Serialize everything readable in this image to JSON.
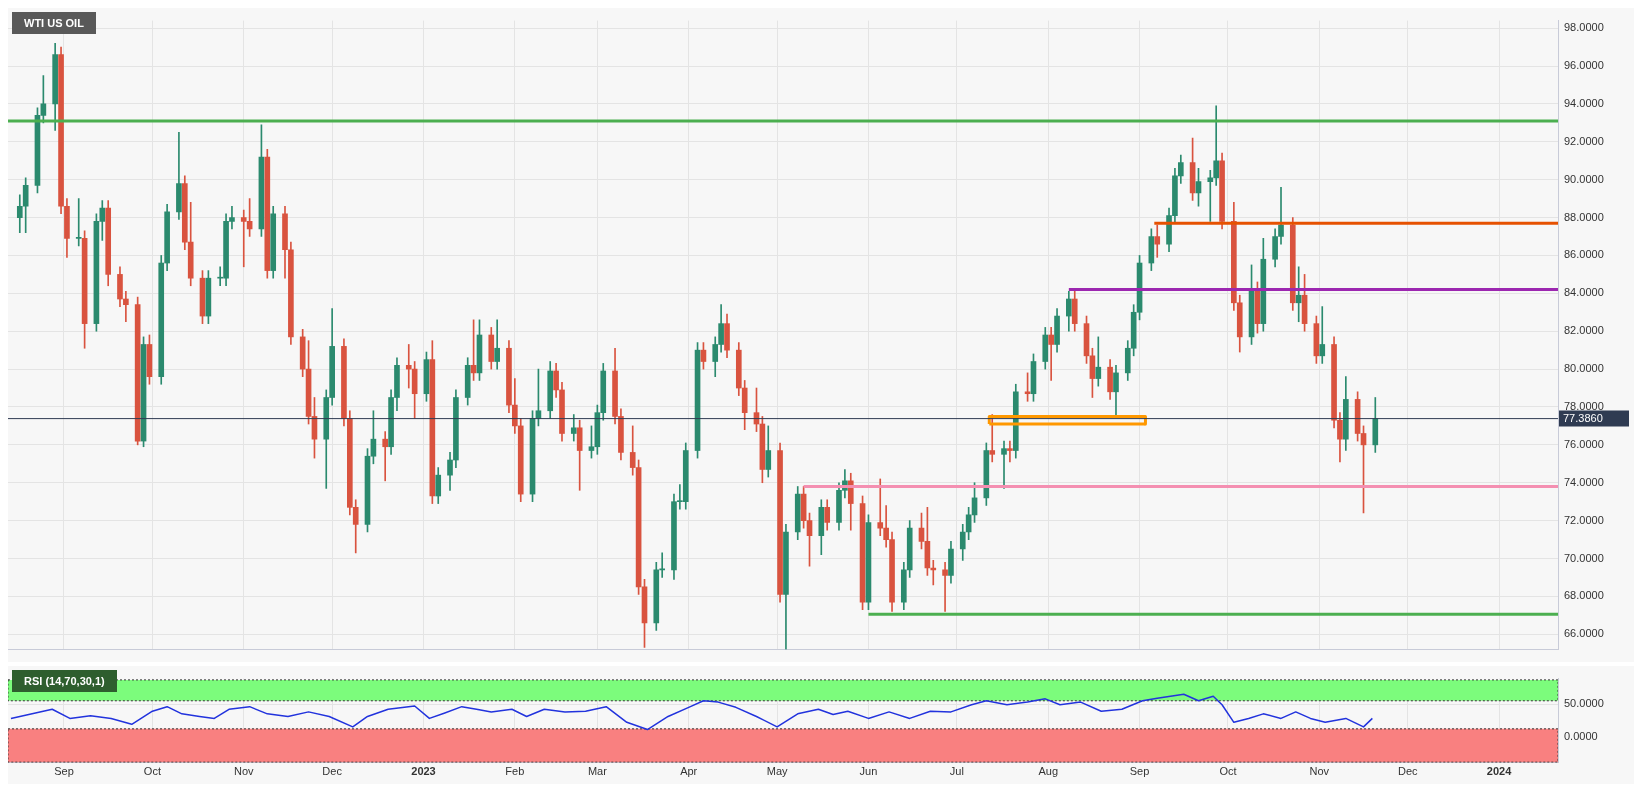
{
  "chart_data": [
    {
      "type": "candlestick",
      "title": "WTI US OIL",
      "x": [
        "2022-08-17",
        "2022-08-19",
        "2022-08-23",
        "2022-08-25",
        "2022-08-29",
        "2022-08-31",
        "2022-09-02",
        "2022-09-06",
        "2022-09-08",
        "2022-09-12",
        "2022-09-14",
        "2022-09-16",
        "2022-09-20",
        "2022-09-22",
        "2022-09-26",
        "2022-09-28",
        "2022-09-30",
        "2022-10-04",
        "2022-10-06",
        "2022-10-10",
        "2022-10-12",
        "2022-10-14",
        "2022-10-18",
        "2022-10-20",
        "2022-10-24",
        "2022-10-26",
        "2022-10-28",
        "2022-11-01",
        "2022-11-03",
        "2022-11-07",
        "2022-11-09",
        "2022-11-11",
        "2022-11-15",
        "2022-11-17",
        "2022-11-21",
        "2022-11-23",
        "2022-11-25",
        "2022-11-29",
        "2022-12-01",
        "2022-12-05",
        "2022-12-07",
        "2022-12-09",
        "2022-12-13",
        "2022-12-15",
        "2022-12-19",
        "2022-12-21",
        "2022-12-23",
        "2022-12-27",
        "2022-12-29",
        "2023-01-02",
        "2023-01-04",
        "2023-01-06",
        "2023-01-10",
        "2023-01-12",
        "2023-01-16",
        "2023-01-18",
        "2023-01-20",
        "2023-01-24",
        "2023-01-26",
        "2023-01-30",
        "2023-02-01",
        "2023-02-03",
        "2023-02-07",
        "2023-02-09",
        "2023-02-13",
        "2023-02-15",
        "2023-02-17",
        "2023-02-21",
        "2023-02-23",
        "2023-02-27",
        "2023-03-01",
        "2023-03-03",
        "2023-03-07",
        "2023-03-09",
        "2023-03-13",
        "2023-03-15",
        "2023-03-17",
        "2023-03-21",
        "2023-03-23",
        "2023-03-27",
        "2023-03-29",
        "2023-03-31",
        "2023-04-04",
        "2023-04-06",
        "2023-04-10",
        "2023-04-12",
        "2023-04-14",
        "2023-04-18",
        "2023-04-20",
        "2023-04-24",
        "2023-04-26",
        "2023-04-28",
        "2023-05-02",
        "2023-05-04",
        "2023-05-08",
        "2023-05-10",
        "2023-05-12",
        "2023-05-16",
        "2023-05-18",
        "2023-05-22",
        "2023-05-24",
        "2023-05-26",
        "2023-05-30",
        "2023-06-01",
        "2023-06-05",
        "2023-06-07",
        "2023-06-09",
        "2023-06-13",
        "2023-06-15",
        "2023-06-19",
        "2023-06-21",
        "2023-06-23",
        "2023-06-27",
        "2023-06-29",
        "2023-07-03",
        "2023-07-05",
        "2023-07-07",
        "2023-07-11",
        "2023-07-13",
        "2023-07-17",
        "2023-07-19",
        "2023-07-21",
        "2023-07-25",
        "2023-07-27",
        "2023-07-31",
        "2023-08-02",
        "2023-08-04",
        "2023-08-08",
        "2023-08-10",
        "2023-08-14",
        "2023-08-16",
        "2023-08-18",
        "2023-08-22",
        "2023-08-24",
        "2023-08-28",
        "2023-08-30",
        "2023-09-01",
        "2023-09-05",
        "2023-09-07",
        "2023-09-11",
        "2023-09-13",
        "2023-09-15",
        "2023-09-19",
        "2023-09-21",
        "2023-09-25",
        "2023-09-27",
        "2023-09-29",
        "2023-10-03",
        "2023-10-05",
        "2023-10-09",
        "2023-10-11",
        "2023-10-13",
        "2023-10-17",
        "2023-10-19",
        "2023-10-23",
        "2023-10-25",
        "2023-10-27",
        "2023-10-31",
        "2023-11-02",
        "2023-11-06",
        "2023-11-08",
        "2023-11-10",
        "2023-11-14",
        "2023-11-16",
        "2023-11-20"
      ],
      "ohlc": [
        [
          88,
          89.2,
          87.2,
          88.6
        ],
        [
          88.6,
          90.1,
          87.2,
          89.7
        ],
        [
          89.7,
          93.8,
          89.3,
          93.4
        ],
        [
          93.4,
          95.5,
          93,
          94
        ],
        [
          94,
          97.2,
          92.6,
          96.6
        ],
        [
          96.6,
          97,
          88.2,
          88.6
        ],
        [
          88.6,
          89,
          85.9,
          86.9
        ],
        [
          86.9,
          89,
          86.5,
          86.9
        ],
        [
          86.9,
          87.3,
          81.1,
          82.4
        ],
        [
          82.4,
          88.2,
          82,
          87.8
        ],
        [
          87.8,
          88.9,
          86.8,
          88.5
        ],
        [
          88.5,
          88.9,
          84.4,
          85
        ],
        [
          85,
          85.4,
          83.3,
          83.7
        ],
        [
          83.7,
          84.1,
          82.5,
          83.4
        ],
        [
          83.4,
          83.8,
          76,
          76.2
        ],
        [
          76.2,
          81.7,
          75.9,
          81.3
        ],
        [
          81.3,
          81.8,
          79.2,
          79.6
        ],
        [
          79.6,
          86,
          79.2,
          85.6
        ],
        [
          85.6,
          88.7,
          85.2,
          88.3
        ],
        [
          88.3,
          92.5,
          87.9,
          89.8
        ],
        [
          89.8,
          90.2,
          86.3,
          86.7
        ],
        [
          86.7,
          88.8,
          84.4,
          84.8
        ],
        [
          84.8,
          85.2,
          82.4,
          82.8
        ],
        [
          82.8,
          85.2,
          82.4,
          84.8
        ],
        [
          84.8,
          85.4,
          84.4,
          84.8
        ],
        [
          84.8,
          88.2,
          84.4,
          87.8
        ],
        [
          87.8,
          88.6,
          87.4,
          88
        ],
        [
          88,
          88.4,
          85.4,
          87.8
        ],
        [
          87.8,
          89,
          87,
          87.4
        ],
        [
          87.4,
          92.9,
          87,
          91.2
        ],
        [
          91.2,
          91.6,
          84.8,
          85.2
        ],
        [
          85.2,
          88.6,
          84.8,
          88.2
        ],
        [
          88.2,
          88.6,
          84.8,
          86.3
        ],
        [
          86.3,
          86.7,
          81.3,
          81.7
        ],
        [
          81.7,
          82.1,
          79.6,
          80
        ],
        [
          80,
          81.5,
          77.1,
          77.5
        ],
        [
          77.5,
          78.5,
          75.3,
          76.3
        ],
        [
          76.3,
          78.9,
          73.7,
          78.5
        ],
        [
          78.5,
          83.2,
          78.1,
          81.2
        ],
        [
          81.2,
          81.6,
          77,
          77.4
        ],
        [
          77.4,
          77.8,
          72.3,
          72.7
        ],
        [
          72.7,
          73.1,
          70.3,
          71.8
        ],
        [
          71.8,
          75.8,
          71.4,
          75.4
        ],
        [
          75.4,
          77.8,
          75,
          76.3
        ],
        [
          76.3,
          76.7,
          74.1,
          75.9
        ],
        [
          75.9,
          78.9,
          75.5,
          78.5
        ],
        [
          78.5,
          80.6,
          77.8,
          80.2
        ],
        [
          80.2,
          81.3,
          79,
          80
        ],
        [
          80,
          80.4,
          77.4,
          78.7
        ],
        [
          78.7,
          80.9,
          78.3,
          80.5
        ],
        [
          80.5,
          81.5,
          72.9,
          73.3
        ],
        [
          73.3,
          74.8,
          72.9,
          74.4
        ],
        [
          74.4,
          75.6,
          73.6,
          75.2
        ],
        [
          75.2,
          78.9,
          74.8,
          78.5
        ],
        [
          78.5,
          80.6,
          78.1,
          80.2
        ],
        [
          80.2,
          82.6,
          79.4,
          79.8
        ],
        [
          79.8,
          82.6,
          79.4,
          81.8
        ],
        [
          81.8,
          82.2,
          80,
          80.4
        ],
        [
          80.4,
          82.6,
          80,
          81.1
        ],
        [
          81.1,
          81.5,
          77.7,
          78.1
        ],
        [
          78.1,
          79.5,
          76.6,
          77
        ],
        [
          77,
          77.4,
          73,
          73.4
        ],
        [
          73.4,
          77.8,
          73,
          77.4
        ],
        [
          77.4,
          80,
          77,
          77.8
        ],
        [
          77.8,
          80.4,
          77.4,
          79.9
        ],
        [
          79.9,
          80.3,
          78.5,
          78.9
        ],
        [
          78.9,
          79.3,
          76.2,
          76.6
        ],
        [
          76.6,
          77.6,
          76.2,
          76.9
        ],
        [
          76.9,
          77.3,
          73.6,
          75.7
        ],
        [
          75.7,
          77,
          75.3,
          75.9
        ],
        [
          75.9,
          78.1,
          75.5,
          77.7
        ],
        [
          77.7,
          80.3,
          77.3,
          79.9
        ],
        [
          79.9,
          81.1,
          77.1,
          77.5
        ],
        [
          77.5,
          77.9,
          75.2,
          75.6
        ],
        [
          75.6,
          77,
          74.4,
          74.8
        ],
        [
          74.8,
          75.2,
          68.1,
          68.5
        ],
        [
          68.5,
          68.9,
          65.3,
          66.6
        ],
        [
          66.6,
          69.8,
          66.2,
          69.4
        ],
        [
          69.4,
          70.3,
          69,
          69.4
        ],
        [
          69.4,
          73.4,
          68.9,
          73
        ],
        [
          73,
          73.9,
          72.6,
          73
        ],
        [
          73,
          76.1,
          72.6,
          75.7
        ],
        [
          75.7,
          81.4,
          75.3,
          81
        ],
        [
          81,
          81.4,
          80,
          80.4
        ],
        [
          80.4,
          81.7,
          79.6,
          81.3
        ],
        [
          81.3,
          83.4,
          80.9,
          82.4
        ],
        [
          82.4,
          82.9,
          80.6,
          81
        ],
        [
          81,
          81.4,
          78.6,
          79
        ],
        [
          79,
          79.4,
          76.8,
          77.7
        ],
        [
          77.7,
          79,
          76.7,
          77.1
        ],
        [
          77.1,
          77.5,
          74,
          74.7
        ],
        [
          74.7,
          77,
          74.3,
          75.7
        ],
        [
          75.7,
          76.1,
          67.7,
          68.1
        ],
        [
          68.1,
          71.8,
          65.2,
          71.4
        ],
        [
          71.4,
          73.8,
          71,
          73.4
        ],
        [
          73.4,
          73.8,
          71.6,
          72
        ],
        [
          72,
          72.4,
          69.6,
          71.2
        ],
        [
          71.2,
          73.1,
          70.2,
          72.7
        ],
        [
          72.7,
          73.1,
          71.5,
          71.9
        ],
        [
          71.9,
          74,
          71.5,
          73.6
        ],
        [
          73.6,
          74.7,
          73.2,
          74.1
        ],
        [
          74.1,
          74.5,
          71.5,
          72.9
        ],
        [
          72.9,
          73.3,
          67.3,
          67.7
        ],
        [
          67.7,
          72.3,
          67.3,
          71.9
        ],
        [
          71.9,
          74.2,
          71.2,
          71.6
        ],
        [
          71.6,
          72.8,
          70.6,
          71
        ],
        [
          71,
          71.4,
          67.2,
          67.7
        ],
        [
          67.7,
          69.8,
          67.3,
          69.4
        ],
        [
          69.4,
          72,
          69,
          71.6
        ],
        [
          71.6,
          72.4,
          70.5,
          70.9
        ],
        [
          70.9,
          72.7,
          69.1,
          69.5
        ],
        [
          69.5,
          69.9,
          68.6,
          69.4
        ],
        [
          69.4,
          69.8,
          67.2,
          69.1
        ],
        [
          69.1,
          70.9,
          68.7,
          70.5
        ],
        [
          70.5,
          71.8,
          69.9,
          71.4
        ],
        [
          71.4,
          72.7,
          71,
          72.3
        ],
        [
          72.3,
          74,
          71.9,
          73.2
        ],
        [
          73.2,
          76.1,
          72.8,
          75.7
        ],
        [
          75.7,
          77.6,
          75.1,
          75.5
        ],
        [
          75.5,
          76.2,
          73.7,
          75.8
        ],
        [
          75.8,
          76.2,
          75.1,
          75.7
        ],
        [
          75.7,
          79.2,
          75.3,
          78.8
        ],
        [
          78.8,
          79.8,
          78.3,
          78.7
        ],
        [
          78.7,
          80.8,
          78.3,
          80.4
        ],
        [
          80.4,
          82.2,
          80,
          81.8
        ],
        [
          81.8,
          82.2,
          79.4,
          81.3
        ],
        [
          81.3,
          83.2,
          80.9,
          82.8
        ],
        [
          82.8,
          84.1,
          82,
          83.7
        ],
        [
          83.7,
          84.2,
          82,
          82.4
        ],
        [
          82.4,
          82.8,
          80.3,
          80.7
        ],
        [
          80.7,
          81.1,
          78.5,
          79.5
        ],
        [
          79.5,
          81.7,
          79.1,
          80.1
        ],
        [
          80.1,
          80.5,
          78.4,
          78.8
        ],
        [
          78.8,
          80.2,
          77.6,
          79.8
        ],
        [
          79.8,
          81.5,
          79.4,
          81.1
        ],
        [
          81.1,
          83.4,
          80.7,
          83
        ],
        [
          83,
          86,
          82.6,
          85.6
        ],
        [
          85.6,
          87.4,
          85.2,
          87
        ],
        [
          87,
          87.6,
          85.9,
          86.6
        ],
        [
          86.6,
          88.5,
          86.2,
          88.1
        ],
        [
          88.1,
          90.6,
          87.7,
          90.2
        ],
        [
          90.2,
          91.3,
          89.8,
          90.9
        ],
        [
          90.9,
          92.2,
          88.9,
          89.3
        ],
        [
          89.3,
          90.6,
          88.6,
          89.9
        ],
        [
          89.9,
          90.5,
          87.8,
          90.1
        ],
        [
          90.1,
          93.9,
          89.7,
          91
        ],
        [
          91,
          91.4,
          87.4,
          87.8
        ],
        [
          87.8,
          88.8,
          83.1,
          83.5
        ],
        [
          83.5,
          83.9,
          80.9,
          81.7
        ],
        [
          81.7,
          85.5,
          81.3,
          84.2
        ],
        [
          84.2,
          84.6,
          81.9,
          82.4
        ],
        [
          82.4,
          86.9,
          82,
          85.8
        ],
        [
          85.8,
          87.4,
          85.4,
          87
        ],
        [
          87,
          89.6,
          86.6,
          87.6
        ],
        [
          87.6,
          88,
          83.1,
          83.5
        ],
        [
          83.5,
          85.4,
          82.5,
          83.9
        ],
        [
          83.9,
          85,
          82,
          82.4
        ],
        [
          82.4,
          82.8,
          80.3,
          80.7
        ],
        [
          80.7,
          83.3,
          80.3,
          81.3
        ],
        [
          81.3,
          81.7,
          76.9,
          77.3
        ],
        [
          77.3,
          77.7,
          75.1,
          76.3
        ],
        [
          76.3,
          79.6,
          75.7,
          78.4
        ],
        [
          78.4,
          78.8,
          76.2,
          76.6
        ],
        [
          76.6,
          77,
          72.4,
          76
        ],
        [
          76,
          78.5,
          75.6,
          77.386
        ]
      ],
      "colors": [
        "#2b8a6e",
        "#2b8a6e",
        "#2b8a6e",
        "#2b8a6e",
        "#2b8a6e",
        "#d9533f",
        "#d9533f",
        "#2b8a6e",
        "#d9533f",
        "#2b8a6e",
        "#2b8a6e",
        "#d9533f",
        "#d9533f",
        "#d9533f",
        "#d9533f",
        "#2b8a6e",
        "#d9533f",
        "#2b8a6e",
        "#2b8a6e",
        "#2b8a6e",
        "#d9533f",
        "#d9533f",
        "#d9533f",
        "#2b8a6e",
        "#2b8a6e",
        "#2b8a6e",
        "#2b8a6e",
        "#d9533f",
        "#d9533f",
        "#2b8a6e",
        "#d9533f",
        "#2b8a6e",
        "#d9533f",
        "#d9533f",
        "#d9533f",
        "#d9533f",
        "#d9533f",
        "#2b8a6e",
        "#2b8a6e",
        "#d9533f",
        "#d9533f",
        "#d9533f",
        "#2b8a6e",
        "#2b8a6e",
        "#d9533f",
        "#2b8a6e",
        "#2b8a6e",
        "#d9533f",
        "#d9533f",
        "#2b8a6e",
        "#d9533f",
        "#2b8a6e",
        "#2b8a6e",
        "#2b8a6e",
        "#2b8a6e",
        "#d9533f",
        "#2b8a6e",
        "#d9533f",
        "#2b8a6e",
        "#d9533f",
        "#d9533f",
        "#d9533f",
        "#2b8a6e",
        "#2b8a6e",
        "#2b8a6e",
        "#d9533f",
        "#d9533f",
        "#2b8a6e",
        "#d9533f",
        "#2b8a6e",
        "#2b8a6e",
        "#2b8a6e",
        "#d9533f",
        "#d9533f",
        "#d9533f",
        "#d9533f",
        "#d9533f",
        "#2b8a6e",
        "#2b8a6e",
        "#2b8a6e",
        "#2b8a6e",
        "#2b8a6e",
        "#2b8a6e",
        "#d9533f",
        "#2b8a6e",
        "#2b8a6e",
        "#d9533f",
        "#d9533f",
        "#d9533f",
        "#d9533f",
        "#d9533f",
        "#2b8a6e",
        "#d9533f",
        "#2b8a6e",
        "#2b8a6e",
        "#d9533f",
        "#d9533f",
        "#2b8a6e",
        "#d9533f",
        "#2b8a6e",
        "#2b8a6e",
        "#d9533f",
        "#d9533f",
        "#2b8a6e",
        "#d9533f",
        "#d9533f",
        "#d9533f",
        "#2b8a6e",
        "#2b8a6e",
        "#d9533f",
        "#d9533f",
        "#d9533f",
        "#d9533f",
        "#2b8a6e",
        "#2b8a6e",
        "#2b8a6e",
        "#2b8a6e",
        "#2b8a6e",
        "#d9533f",
        "#2b8a6e",
        "#d9533f",
        "#2b8a6e",
        "#d9533f",
        "#2b8a6e",
        "#2b8a6e",
        "#d9533f",
        "#2b8a6e",
        "#2b8a6e",
        "#d9533f",
        "#d9533f",
        "#d9533f",
        "#2b8a6e",
        "#d9533f",
        "#2b8a6e",
        "#2b8a6e",
        "#2b8a6e",
        "#2b8a6e",
        "#2b8a6e",
        "#d9533f",
        "#2b8a6e",
        "#2b8a6e",
        "#2b8a6e",
        "#d9533f",
        "#2b8a6e",
        "#2b8a6e",
        "#2b8a6e",
        "#d9533f",
        "#d9533f",
        "#d9533f",
        "#2b8a6e",
        "#d9533f",
        "#2b8a6e",
        "#2b8a6e",
        "#2b8a6e",
        "#d9533f",
        "#2b8a6e",
        "#d9533f",
        "#d9533f",
        "#2b8a6e",
        "#d9533f",
        "#d9533f",
        "#2b8a6e",
        "#d9533f",
        "#d9533f",
        "#2b8a6e"
      ],
      "series": [
        {
          "type": "line",
          "x": [
            "2023-06-01",
            "2024-01-21"
          ],
          "values": [
            67.05,
            67.05
          ],
          "color": "#4caf50"
        },
        {
          "type": "line",
          "x": [
            "2023-05-10",
            "2024-01-21"
          ],
          "values": [
            73.8,
            73.8
          ],
          "color": "#f48fb1"
        },
        {
          "type": "line",
          "x": [
            "2023-08-08",
            "2024-01-21"
          ],
          "values": [
            84.2,
            84.2
          ],
          "color": "#9c27b0"
        },
        {
          "type": "line",
          "x": [
            "2023-09-06",
            "2024-01-21"
          ],
          "values": [
            87.7,
            87.7
          ],
          "color": "#e65100"
        },
        {
          "type": "line",
          "x": [
            "2023-07-12",
            "2023-07-12",
            "2023-09-03",
            "2023-09-03"
          ],
          "values": [
            77.1,
            77.5,
            77.5,
            77.1
          ],
          "color": "#ff9800"
        },
        {
          "type": "line",
          "x": [
            "2023-07-12",
            "2023-09-03"
          ],
          "values": [
            77.1,
            77.1
          ],
          "color": "#ff9800"
        }
      ],
      "ref_lines": [
        {
          "axis": "y",
          "value": 93.1,
          "color": "#4caf50"
        },
        {
          "axis": "y",
          "value": 77.386,
          "label": "77.3860",
          "color": "#2f3b52"
        }
      ],
      "xlim": [
        "2022-08-13",
        "2024-01-21"
      ],
      "xticks": [
        {
          "value": "2022-09-01",
          "label": null
        },
        {
          "value": "2022-10-01",
          "label": null
        },
        {
          "value": "2022-11-01",
          "label": null
        },
        {
          "value": "2022-12-01",
          "label": null
        },
        {
          "value": "2023-01-01",
          "label": null
        },
        {
          "value": "2023-02-01",
          "label": null
        },
        {
          "value": "2023-03-01",
          "label": null
        },
        {
          "value": "2023-04-01",
          "label": null
        },
        {
          "value": "2023-05-01",
          "label": null
        },
        {
          "value": "2023-06-01",
          "label": null
        },
        {
          "value": "2023-07-01",
          "label": null
        },
        {
          "value": "2023-08-01",
          "label": null
        },
        {
          "value": "2023-09-01",
          "label": null
        },
        {
          "value": "2023-10-01",
          "label": null
        },
        {
          "value": "2023-11-01",
          "label": null
        },
        {
          "value": "2023-12-01",
          "label": null
        },
        {
          "value": "2024-01-01",
          "label": null
        }
      ],
      "ylim": [
        65.2,
        98.4
      ],
      "yticks": [
        {
          "value": 66,
          "label": "66.0000"
        },
        {
          "value": 68,
          "label": "68.0000"
        },
        {
          "value": 70,
          "label": "70.0000"
        },
        {
          "value": 72,
          "label": "72.0000"
        },
        {
          "value": 74,
          "label": "74.0000"
        },
        {
          "value": 76,
          "label": "76.0000"
        },
        {
          "value": 78,
          "label": "78.0000"
        },
        {
          "value": 80,
          "label": "80.0000"
        },
        {
          "value": 82,
          "label": "82.0000"
        },
        {
          "value": 84,
          "label": "84.0000"
        },
        {
          "value": 86,
          "label": "86.0000"
        },
        {
          "value": 88,
          "label": "88.0000"
        },
        {
          "value": 90,
          "label": "90.0000"
        },
        {
          "value": 92,
          "label": "92.0000"
        },
        {
          "value": 94,
          "label": "94.0000"
        },
        {
          "value": 96,
          "label": "96.0000"
        },
        {
          "value": 98,
          "label": "98.0000"
        }
      ],
      "tick_labels": "y",
      "grid": true
    },
    {
      "type": "line",
      "title": "RSI (14,70,30,1)",
      "x": [
        "2022-08-14",
        "2022-08-28",
        "2022-09-03",
        "2022-09-10",
        "2022-09-17",
        "2022-09-24",
        "2022-10-01",
        "2022-10-06",
        "2022-10-11",
        "2022-10-17",
        "2022-10-22",
        "2022-10-27",
        "2022-11-03",
        "2022-11-09",
        "2022-11-16",
        "2022-11-23",
        "2022-11-30",
        "2022-12-08",
        "2022-12-13",
        "2022-12-20",
        "2022-12-29",
        "2023-01-03",
        "2023-01-08",
        "2023-01-14",
        "2023-01-19",
        "2023-01-24",
        "2023-01-31",
        "2023-02-05",
        "2023-02-11",
        "2023-02-18",
        "2023-02-25",
        "2023-03-04",
        "2023-03-11",
        "2023-03-18",
        "2023-03-25",
        "2023-04-01",
        "2023-04-06",
        "2023-04-11",
        "2023-04-17",
        "2023-04-24",
        "2023-05-01",
        "2023-05-08",
        "2023-05-15",
        "2023-05-20",
        "2023-05-25",
        "2023-06-01",
        "2023-06-08",
        "2023-06-15",
        "2023-06-22",
        "2023-06-29",
        "2023-07-06",
        "2023-07-11",
        "2023-07-18",
        "2023-07-25",
        "2023-07-31",
        "2023-08-05",
        "2023-08-12",
        "2023-08-19",
        "2023-08-26",
        "2023-09-02",
        "2023-09-07",
        "2023-09-16",
        "2023-09-21",
        "2023-09-26",
        "2023-09-29",
        "2023-10-03",
        "2023-10-08",
        "2023-10-13",
        "2023-10-19",
        "2023-10-24",
        "2023-10-29",
        "2023-11-03",
        "2023-11-10",
        "2023-11-16",
        "2023-11-19"
      ],
      "values": [
        28,
        42,
        28,
        32,
        28,
        19,
        39,
        46,
        35,
        31,
        28,
        42,
        46,
        35,
        31,
        38,
        31,
        15,
        31,
        42,
        47,
        28,
        36,
        46,
        42,
        38,
        42,
        31,
        42,
        38,
        39,
        46,
        22,
        11,
        31,
        45,
        55,
        53,
        45,
        31,
        15,
        35,
        42,
        34,
        39,
        28,
        38,
        28,
        39,
        38,
        49,
        55,
        49,
        53,
        58,
        49,
        53,
        39,
        42,
        55,
        59,
        65,
        55,
        62,
        49,
        22,
        28,
        35,
        28,
        38,
        28,
        22,
        28,
        15,
        28
      ],
      "color": "#2233dd",
      "bands": [
        {
          "axis": "y",
          "from": 55,
          "to": 87,
          "color": "#7cfc7c"
        },
        {
          "axis": "y",
          "from": -39,
          "to": 12,
          "color": "#f98080"
        }
      ],
      "xlim": [
        "2022-08-13",
        "2024-01-21"
      ],
      "xticks": [
        {
          "value": "2022-09-01",
          "label": "Sep"
        },
        {
          "value": "2022-10-01",
          "label": "Oct"
        },
        {
          "value": "2022-11-01",
          "label": "Nov"
        },
        {
          "value": "2022-12-01",
          "label": "Dec"
        },
        {
          "value": "2023-01-01",
          "label": "2023"
        },
        {
          "value": "2023-02-01",
          "label": "Feb"
        },
        {
          "value": "2023-03-01",
          "label": "Mar"
        },
        {
          "value": "2023-04-01",
          "label": "Apr"
        },
        {
          "value": "2023-05-01",
          "label": "May"
        },
        {
          "value": "2023-06-01",
          "label": "Jun"
        },
        {
          "value": "2023-07-01",
          "label": "Jul"
        },
        {
          "value": "2023-08-01",
          "label": "Aug"
        },
        {
          "value": "2023-09-01",
          "label": "Sep"
        },
        {
          "value": "2023-10-01",
          "label": "Oct"
        },
        {
          "value": "2023-11-01",
          "label": "Nov"
        },
        {
          "value": "2023-12-01",
          "label": "Dec"
        },
        {
          "value": "2024-01-01",
          "label": "2024"
        }
      ],
      "ylim": [
        -40,
        89
      ],
      "yticks": [
        {
          "value": 0,
          "label": "0.0000"
        },
        {
          "value": 50,
          "label": "50.0000"
        }
      ],
      "grid": true
    }
  ]
}
